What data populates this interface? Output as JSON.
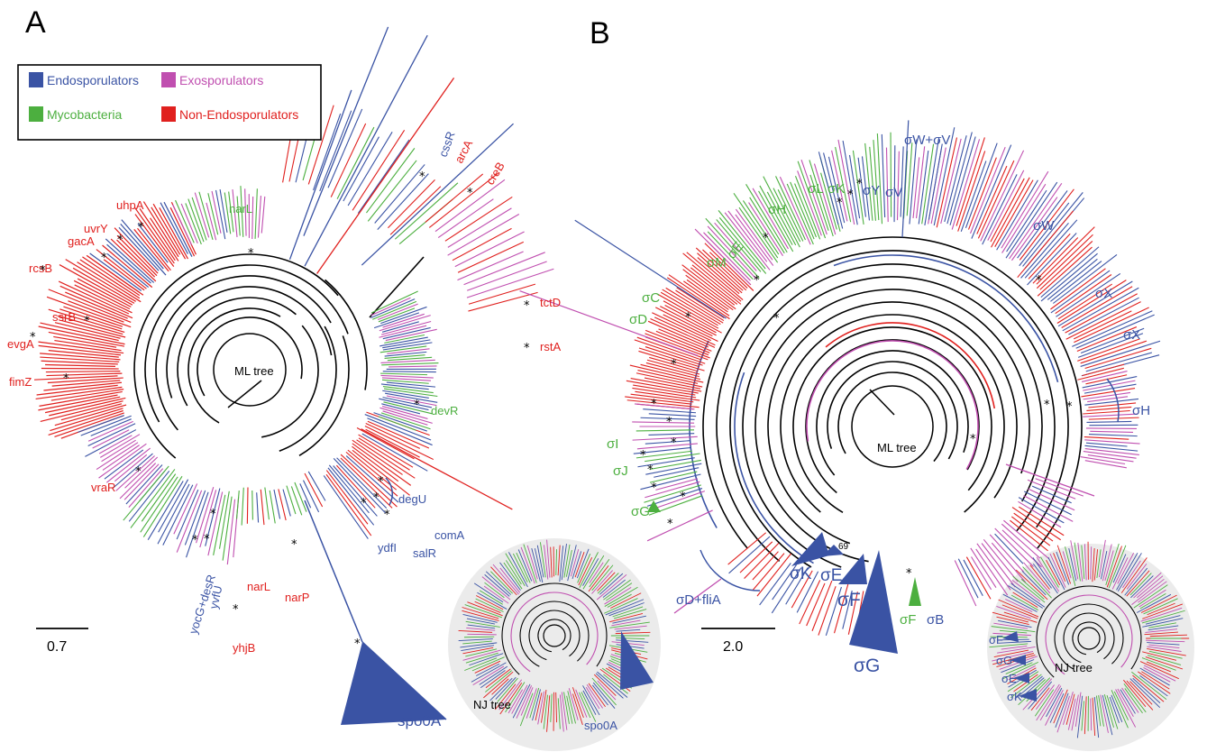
{
  "colors": {
    "endosporulators": "#3a53a4",
    "exosporulators": "#c04fb0",
    "mycobacteria": "#4caf3f",
    "non_endosporulators": "#e0201e",
    "backbone": "#000000",
    "inset_bg": "#ebebeb"
  },
  "panels": {
    "a": {
      "letter": "A",
      "tree_label": "ML tree",
      "inset_label": "NJ tree",
      "scale": "0.7",
      "legend": [
        {
          "label": "Endosporulators",
          "color": "#3a53a4"
        },
        {
          "label": "Exosporulators",
          "color": "#c04fb0"
        },
        {
          "label": "Mycobacteria",
          "color": "#4caf3f"
        },
        {
          "label": "Non-Endosporulators",
          "color": "#e0201e"
        }
      ],
      "gene_labels": [
        {
          "text": "uhpA",
          "color": "#e0201e"
        },
        {
          "text": "uvrY",
          "color": "#e0201e"
        },
        {
          "text": "gacA",
          "color": "#e0201e"
        },
        {
          "text": "rcsB",
          "color": "#e0201e"
        },
        {
          "text": "ssrB",
          "color": "#e0201e"
        },
        {
          "text": "evgA",
          "color": "#e0201e"
        },
        {
          "text": "fimZ",
          "color": "#e0201e"
        },
        {
          "text": "vraR",
          "color": "#e0201e"
        },
        {
          "text": "narL",
          "color": "#4caf3f"
        },
        {
          "text": "cssR",
          "color": "#3a53a4"
        },
        {
          "text": "arcA",
          "color": "#e0201e"
        },
        {
          "text": "creB",
          "color": "#e0201e"
        },
        {
          "text": "tctD",
          "color": "#e0201e"
        },
        {
          "text": "rstA",
          "color": "#e0201e"
        },
        {
          "text": "devR",
          "color": "#4caf3f"
        },
        {
          "text": "degU",
          "color": "#3a53a4"
        },
        {
          "text": "comA",
          "color": "#3a53a4"
        },
        {
          "text": "salR",
          "color": "#3a53a4"
        },
        {
          "text": "ydfI",
          "color": "#3a53a4"
        },
        {
          "text": "narL",
          "color": "#e0201e"
        },
        {
          "text": "narP",
          "color": "#e0201e"
        },
        {
          "text": "yhjB",
          "color": "#e0201e"
        },
        {
          "text": "yvfU",
          "color": "#3a53a4"
        },
        {
          "text": "yocG+desR",
          "color": "#3a53a4"
        },
        {
          "text": "spo0A",
          "color": "#3a53a4"
        }
      ],
      "inset_gene_labels": [
        {
          "text": "spo0A",
          "color": "#3a53a4"
        }
      ]
    },
    "b": {
      "letter": "B",
      "tree_label": "ML tree",
      "inset_label": "NJ tree",
      "scale": "2.0",
      "bootstrap": "69",
      "sigma_labels": [
        {
          "text": "σW+σV",
          "color": "#3a53a4"
        },
        {
          "text": "σV",
          "color": "#3a53a4"
        },
        {
          "text": "σW",
          "color": "#3a53a4"
        },
        {
          "text": "σX",
          "color": "#3a53a4"
        },
        {
          "text": "σX",
          "color": "#3a53a4"
        },
        {
          "text": "σH",
          "color": "#3a53a4"
        },
        {
          "text": "σY",
          "color": "#3a53a4"
        },
        {
          "text": "σL",
          "color": "#4caf3f"
        },
        {
          "text": "σK",
          "color": "#4caf3f"
        },
        {
          "text": "σH",
          "color": "#4caf3f"
        },
        {
          "text": "σE",
          "color": "#4caf3f"
        },
        {
          "text": "σM",
          "color": "#4caf3f"
        },
        {
          "text": "σC",
          "color": "#4caf3f"
        },
        {
          "text": "σD",
          "color": "#4caf3f"
        },
        {
          "text": "σI",
          "color": "#4caf3f"
        },
        {
          "text": "σJ",
          "color": "#4caf3f"
        },
        {
          "text": "σG",
          "color": "#4caf3f"
        },
        {
          "text": "σD+fliA",
          "color": "#3a53a4"
        },
        {
          "text": "σK",
          "color": "#3a53a4"
        },
        {
          "text": "σE",
          "color": "#3a53a4"
        },
        {
          "text": "σF",
          "color": "#3a53a4"
        },
        {
          "text": "σG",
          "color": "#3a53a4"
        },
        {
          "text": "σF",
          "color": "#4caf3f"
        },
        {
          "text": "σB",
          "color": "#3a53a4"
        }
      ],
      "inset_sigma_labels": [
        {
          "text": "σF",
          "color": "#3a53a4"
        },
        {
          "text": "σG",
          "color": "#3a53a4"
        },
        {
          "text": "σE",
          "color": "#3a53a4"
        },
        {
          "text": "σK",
          "color": "#3a53a4"
        }
      ]
    }
  },
  "bootstrap_marker": "*"
}
